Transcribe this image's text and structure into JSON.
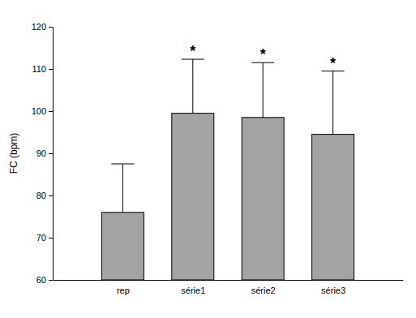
{
  "chart_data": {
    "type": "bar",
    "y_label": "FC (bpm)",
    "categories": [
      "rep",
      "série1",
      "série2",
      "série3"
    ],
    "values": [
      76,
      99.5,
      98.5,
      94.5
    ],
    "errors": [
      11.5,
      12.8,
      13,
      15
    ],
    "annotations": [
      null,
      "*",
      "*",
      "*"
    ],
    "color": "#a3a3a3",
    "ylim": [
      60,
      120
    ],
    "yticks": [
      60,
      70,
      80,
      90,
      100,
      110,
      120
    ],
    "grid": false
  }
}
